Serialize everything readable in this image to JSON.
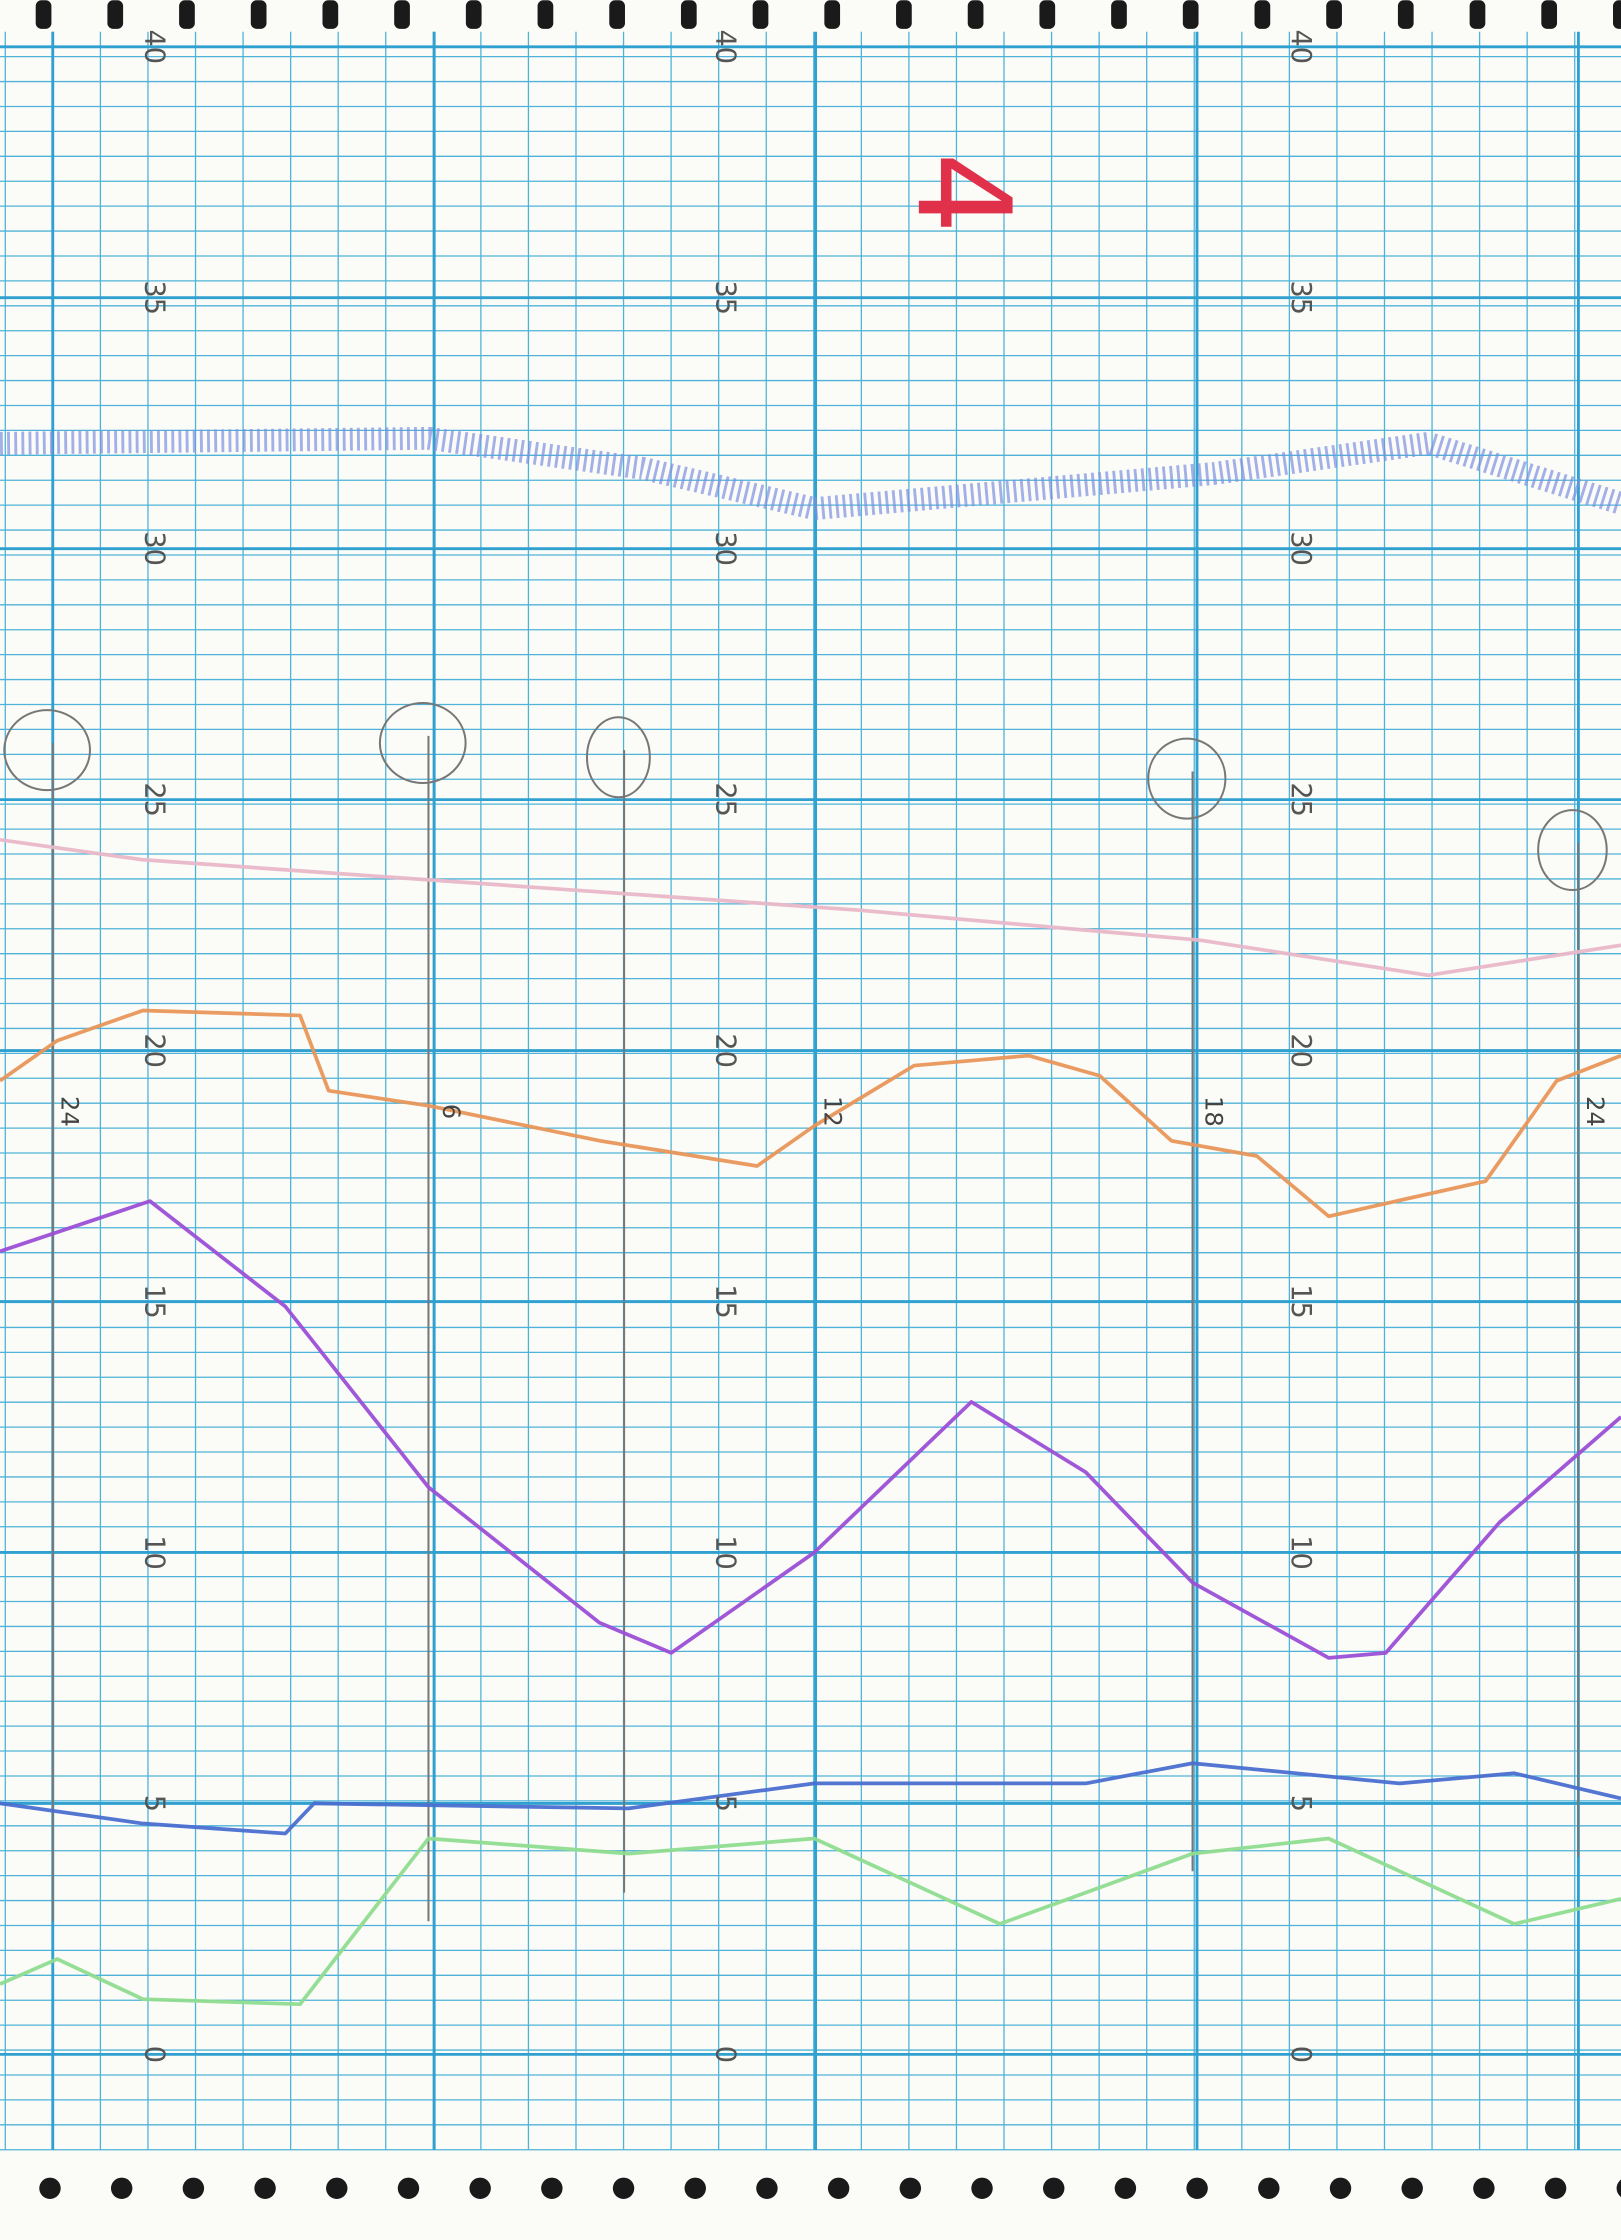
{
  "chart_data": {
    "type": "line",
    "annotation": "4",
    "xlim": [
      -0.83,
      24.67
    ],
    "xticks": [
      {
        "value": 0,
        "label": "24"
      },
      6,
      12,
      18,
      {
        "value": 24,
        "label": "24"
      }
    ],
    "ylim": [
      -1.9,
      40.3
    ],
    "yticks": [
      0,
      5,
      10,
      15,
      20,
      25,
      30,
      35,
      40
    ],
    "grid": true,
    "series": [
      {
        "color": "#7d8fe0",
        "x": [
          -0.83,
          5.91,
          9.28,
          11.98,
          18.27,
          21.64,
          24.67
        ],
        "values": [
          32.1,
          32.2,
          31.6,
          30.8,
          31.5,
          32.1,
          30.9
        ]
      },
      {
        "color": "#e9b8c8",
        "x": [
          -0.83,
          1.42,
          8.16,
          12.66,
          18.05,
          21.64,
          24.67
        ],
        "values": [
          24.2,
          23.8,
          23.2,
          22.8,
          22.2,
          21.5,
          22.1
        ]
      },
      {
        "color": "#e8965a",
        "x": [
          -0.83,
          0.07,
          1.42,
          3.89,
          4.34,
          5.91,
          8.61,
          11.08,
          11.98,
          13.55,
          15.35,
          16.47,
          17.6,
          18.94,
          20.07,
          22.54,
          23.66,
          24.67
        ],
        "values": [
          19.4,
          20.2,
          20.8,
          20.7,
          19.2,
          18.9,
          18.2,
          17.7,
          18.5,
          19.7,
          19.9,
          19.5,
          18.2,
          17.9,
          16.7,
          17.4,
          19.4,
          19.9
        ]
      },
      {
        "color": "#9b4fd6",
        "x": [
          -0.83,
          1.53,
          3.66,
          5.91,
          8.6,
          9.73,
          11.98,
          14.45,
          16.25,
          17.93,
          20.07,
          20.97,
          22.76,
          24.67
        ],
        "values": [
          16.0,
          17.0,
          14.9,
          11.3,
          8.6,
          8.0,
          10.0,
          13.0,
          11.6,
          9.4,
          7.9,
          8.0,
          10.6,
          12.7
        ]
      },
      {
        "color": "#4a6fd0",
        "x": [
          -0.83,
          1.42,
          3.66,
          4.11,
          9.06,
          11.98,
          16.25,
          17.93,
          21.19,
          22.99,
          24.67
        ],
        "values": [
          5.0,
          4.6,
          4.4,
          5.0,
          4.9,
          5.4,
          5.4,
          5.8,
          5.4,
          5.6,
          5.1
        ]
      },
      {
        "color": "#8fdc8f",
        "x": [
          -0.83,
          0.07,
          1.42,
          3.89,
          5.91,
          9.06,
          11.98,
          14.9,
          17.93,
          20.07,
          22.99,
          24.67
        ],
        "values": [
          1.4,
          1.9,
          1.1,
          1.0,
          4.3,
          4.0,
          4.3,
          2.6,
          4.0,
          4.3,
          2.6,
          3.1
        ]
      }
    ]
  }
}
